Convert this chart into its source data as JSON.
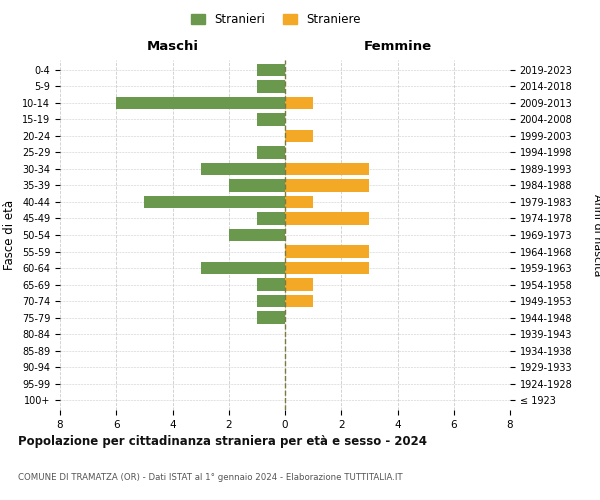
{
  "age_groups": [
    "0-4",
    "5-9",
    "10-14",
    "15-19",
    "20-24",
    "25-29",
    "30-34",
    "35-39",
    "40-44",
    "45-49",
    "50-54",
    "55-59",
    "60-64",
    "65-69",
    "70-74",
    "75-79",
    "80-84",
    "85-89",
    "90-94",
    "95-99",
    "100+"
  ],
  "birth_years": [
    "2019-2023",
    "2014-2018",
    "2009-2013",
    "2004-2008",
    "1999-2003",
    "1994-1998",
    "1989-1993",
    "1984-1988",
    "1979-1983",
    "1974-1978",
    "1969-1973",
    "1964-1968",
    "1959-1963",
    "1954-1958",
    "1949-1953",
    "1944-1948",
    "1939-1943",
    "1934-1938",
    "1929-1933",
    "1924-1928",
    "≤ 1923"
  ],
  "males": [
    1,
    1,
    6,
    1,
    0,
    1,
    3,
    2,
    5,
    1,
    2,
    0,
    3,
    1,
    1,
    1,
    0,
    0,
    0,
    0,
    0
  ],
  "females": [
    0,
    0,
    1,
    0,
    1,
    0,
    3,
    3,
    1,
    3,
    0,
    3,
    3,
    1,
    1,
    0,
    0,
    0,
    0,
    0,
    0
  ],
  "male_color": "#6a994e",
  "female_color": "#f4a926",
  "background_color": "#ffffff",
  "grid_color": "#cccccc",
  "center_line_color": "#7a7a40",
  "title": "Popolazione per cittadinanza straniera per età e sesso - 2024",
  "subtitle": "COMUNE DI TRAMATZA (OR) - Dati ISTAT al 1° gennaio 2024 - Elaborazione TUTTITALIA.IT",
  "xlabel_left": "Maschi",
  "xlabel_right": "Femmine",
  "ylabel_left": "Fasce di età",
  "ylabel_right": "Anni di nascita",
  "legend_male": "Stranieri",
  "legend_female": "Straniere",
  "xlim": 8
}
